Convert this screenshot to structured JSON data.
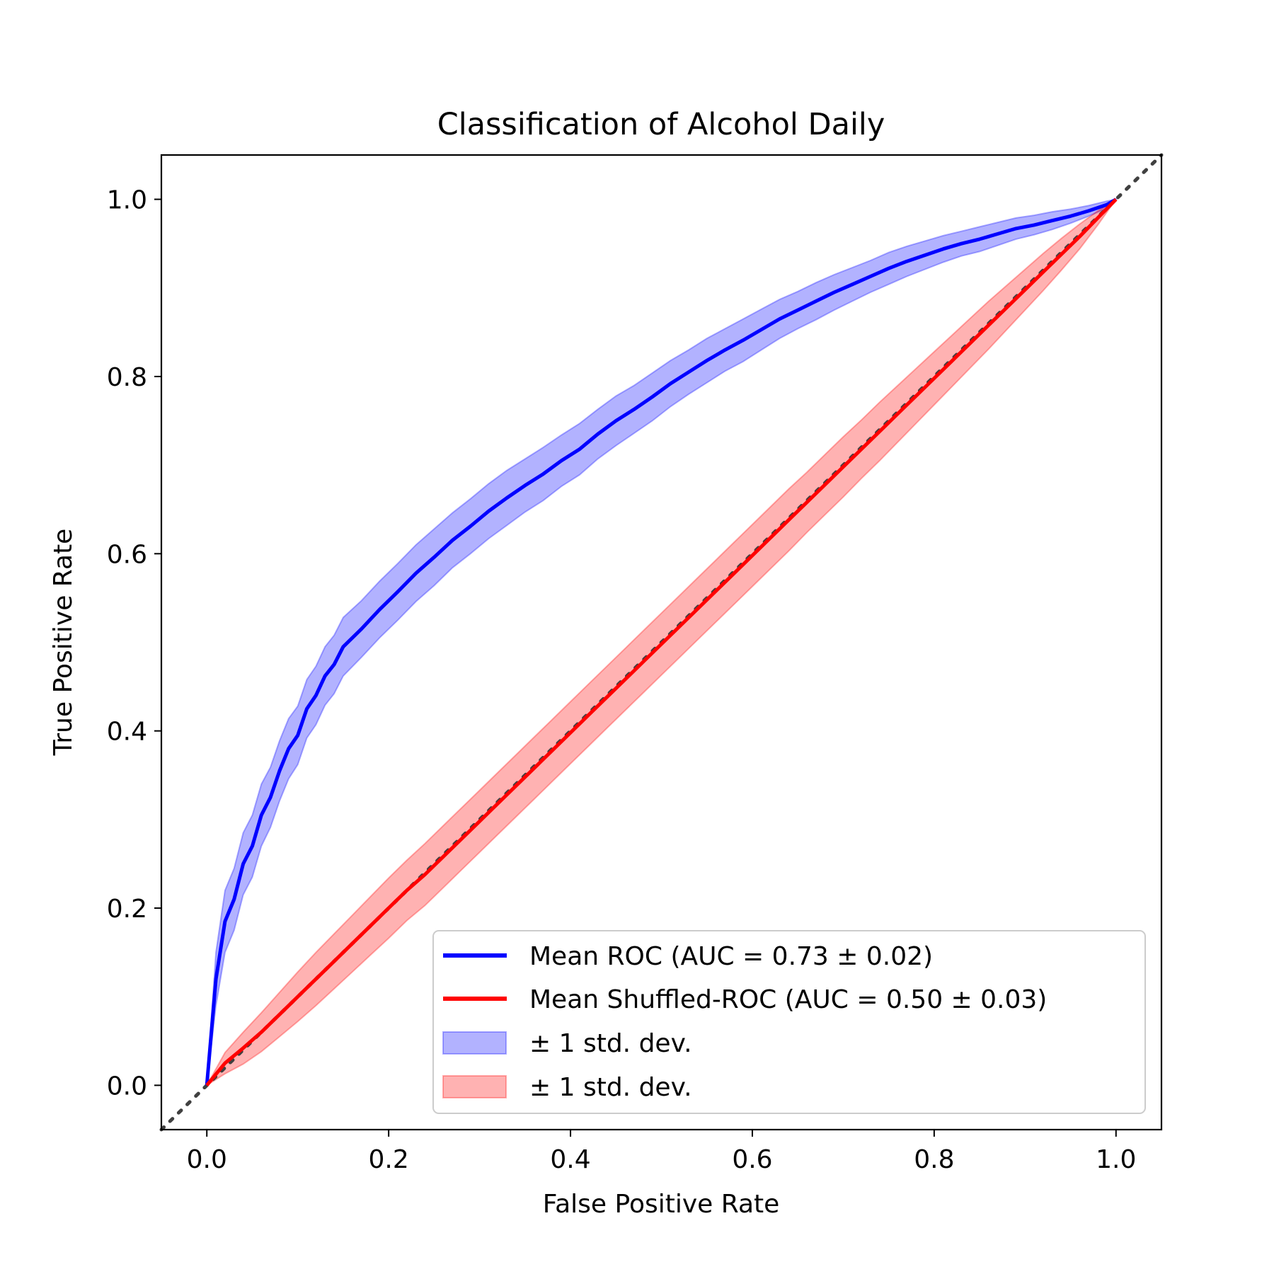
{
  "chart_data": {
    "type": "line",
    "title": "Classification of Alcohol Daily",
    "xlabel": "False Positive Rate",
    "ylabel": "True Positive Rate",
    "xlim": [
      -0.05,
      1.05
    ],
    "ylim": [
      -0.05,
      1.05
    ],
    "x_ticks": [
      "0.0",
      "0.2",
      "0.4",
      "0.6",
      "0.8",
      "1.0"
    ],
    "y_ticks": [
      "0.0",
      "0.2",
      "0.4",
      "0.6",
      "0.8",
      "1.0"
    ],
    "grid": false,
    "legend_position": "lower-right",
    "series": [
      {
        "name": "Mean ROC (AUC = 0.73 ± 0.02)",
        "color": "#0000ff",
        "x": [
          0,
          0.01,
          0.02,
          0.03,
          0.04,
          0.05,
          0.06,
          0.07,
          0.08,
          0.09,
          0.1,
          0.11,
          0.12,
          0.13,
          0.14,
          0.15,
          0.17,
          0.19,
          0.21,
          0.23,
          0.25,
          0.27,
          0.29,
          0.31,
          0.33,
          0.35,
          0.37,
          0.39,
          0.41,
          0.43,
          0.45,
          0.47,
          0.49,
          0.51,
          0.53,
          0.55,
          0.57,
          0.59,
          0.61,
          0.63,
          0.65,
          0.67,
          0.69,
          0.71,
          0.73,
          0.75,
          0.77,
          0.79,
          0.81,
          0.83,
          0.85,
          0.87,
          0.89,
          0.91,
          0.93,
          0.95,
          0.97,
          0.99,
          1.0
        ],
        "y": [
          0,
          0.12,
          0.185,
          0.21,
          0.25,
          0.27,
          0.305,
          0.325,
          0.355,
          0.38,
          0.395,
          0.425,
          0.44,
          0.462,
          0.475,
          0.495,
          0.515,
          0.537,
          0.557,
          0.578,
          0.596,
          0.615,
          0.631,
          0.648,
          0.663,
          0.677,
          0.69,
          0.705,
          0.718,
          0.735,
          0.75,
          0.763,
          0.777,
          0.792,
          0.805,
          0.818,
          0.83,
          0.841,
          0.853,
          0.865,
          0.875,
          0.885,
          0.895,
          0.904,
          0.913,
          0.922,
          0.93,
          0.937,
          0.944,
          0.95,
          0.955,
          0.961,
          0.967,
          0.971,
          0.976,
          0.981,
          0.987,
          0.994,
          1.0
        ]
      },
      {
        "name": "Mean Shuffled-ROC (AUC = 0.50 ± 0.03)",
        "color": "#ff0000",
        "x": [
          0,
          0.02,
          0.04,
          0.06,
          0.08,
          0.1,
          0.12,
          0.14,
          0.16,
          0.18,
          0.2,
          0.22,
          0.24,
          0.26,
          0.28,
          0.3,
          0.32,
          0.34,
          0.36,
          0.38,
          0.4,
          0.42,
          0.44,
          0.46,
          0.48,
          0.5,
          0.52,
          0.54,
          0.56,
          0.58,
          0.6,
          0.62,
          0.64,
          0.66,
          0.68,
          0.7,
          0.72,
          0.74,
          0.76,
          0.78,
          0.8,
          0.82,
          0.84,
          0.86,
          0.88,
          0.9,
          0.92,
          0.94,
          0.96,
          0.98,
          1.0
        ],
        "y": [
          0,
          0.025,
          0.042,
          0.06,
          0.08,
          0.1,
          0.12,
          0.14,
          0.16,
          0.18,
          0.2,
          0.22,
          0.238,
          0.258,
          0.278,
          0.298,
          0.318,
          0.338,
          0.358,
          0.378,
          0.398,
          0.418,
          0.438,
          0.458,
          0.478,
          0.498,
          0.518,
          0.538,
          0.558,
          0.578,
          0.598,
          0.618,
          0.638,
          0.658,
          0.678,
          0.698,
          0.718,
          0.738,
          0.758,
          0.778,
          0.798,
          0.818,
          0.838,
          0.858,
          0.878,
          0.898,
          0.918,
          0.938,
          0.958,
          0.979,
          1.0
        ]
      },
      {
        "name": "± 1 std. dev.",
        "color": "#0000ff",
        "band_of": 0,
        "std": [
          0,
          0.03,
          0.035,
          0.035,
          0.035,
          0.035,
          0.035,
          0.034,
          0.034,
          0.034,
          0.033,
          0.033,
          0.033,
          0.033,
          0.033,
          0.033,
          0.032,
          0.032,
          0.032,
          0.032,
          0.032,
          0.031,
          0.031,
          0.031,
          0.031,
          0.03,
          0.03,
          0.029,
          0.029,
          0.028,
          0.028,
          0.027,
          0.027,
          0.026,
          0.025,
          0.025,
          0.024,
          0.024,
          0.023,
          0.022,
          0.021,
          0.021,
          0.02,
          0.019,
          0.018,
          0.018,
          0.017,
          0.016,
          0.015,
          0.014,
          0.014,
          0.013,
          0.012,
          0.011,
          0.01,
          0.008,
          0.006,
          0.004,
          0
        ]
      },
      {
        "name": "± 1 std. dev.",
        "color": "#ff0000",
        "band_of": 1,
        "std": [
          0,
          0.012,
          0.018,
          0.022,
          0.025,
          0.028,
          0.03,
          0.031,
          0.032,
          0.033,
          0.034,
          0.034,
          0.035,
          0.035,
          0.035,
          0.035,
          0.035,
          0.035,
          0.035,
          0.035,
          0.035,
          0.035,
          0.035,
          0.035,
          0.035,
          0.035,
          0.035,
          0.035,
          0.035,
          0.035,
          0.035,
          0.035,
          0.035,
          0.034,
          0.034,
          0.034,
          0.033,
          0.033,
          0.032,
          0.031,
          0.03,
          0.029,
          0.028,
          0.027,
          0.025,
          0.023,
          0.021,
          0.018,
          0.014,
          0.008,
          0
        ]
      }
    ],
    "reference_line": {
      "x": [
        -0.05,
        1.05
      ],
      "y": [
        -0.05,
        1.05
      ],
      "style": "dotted",
      "color": "#404040"
    }
  }
}
